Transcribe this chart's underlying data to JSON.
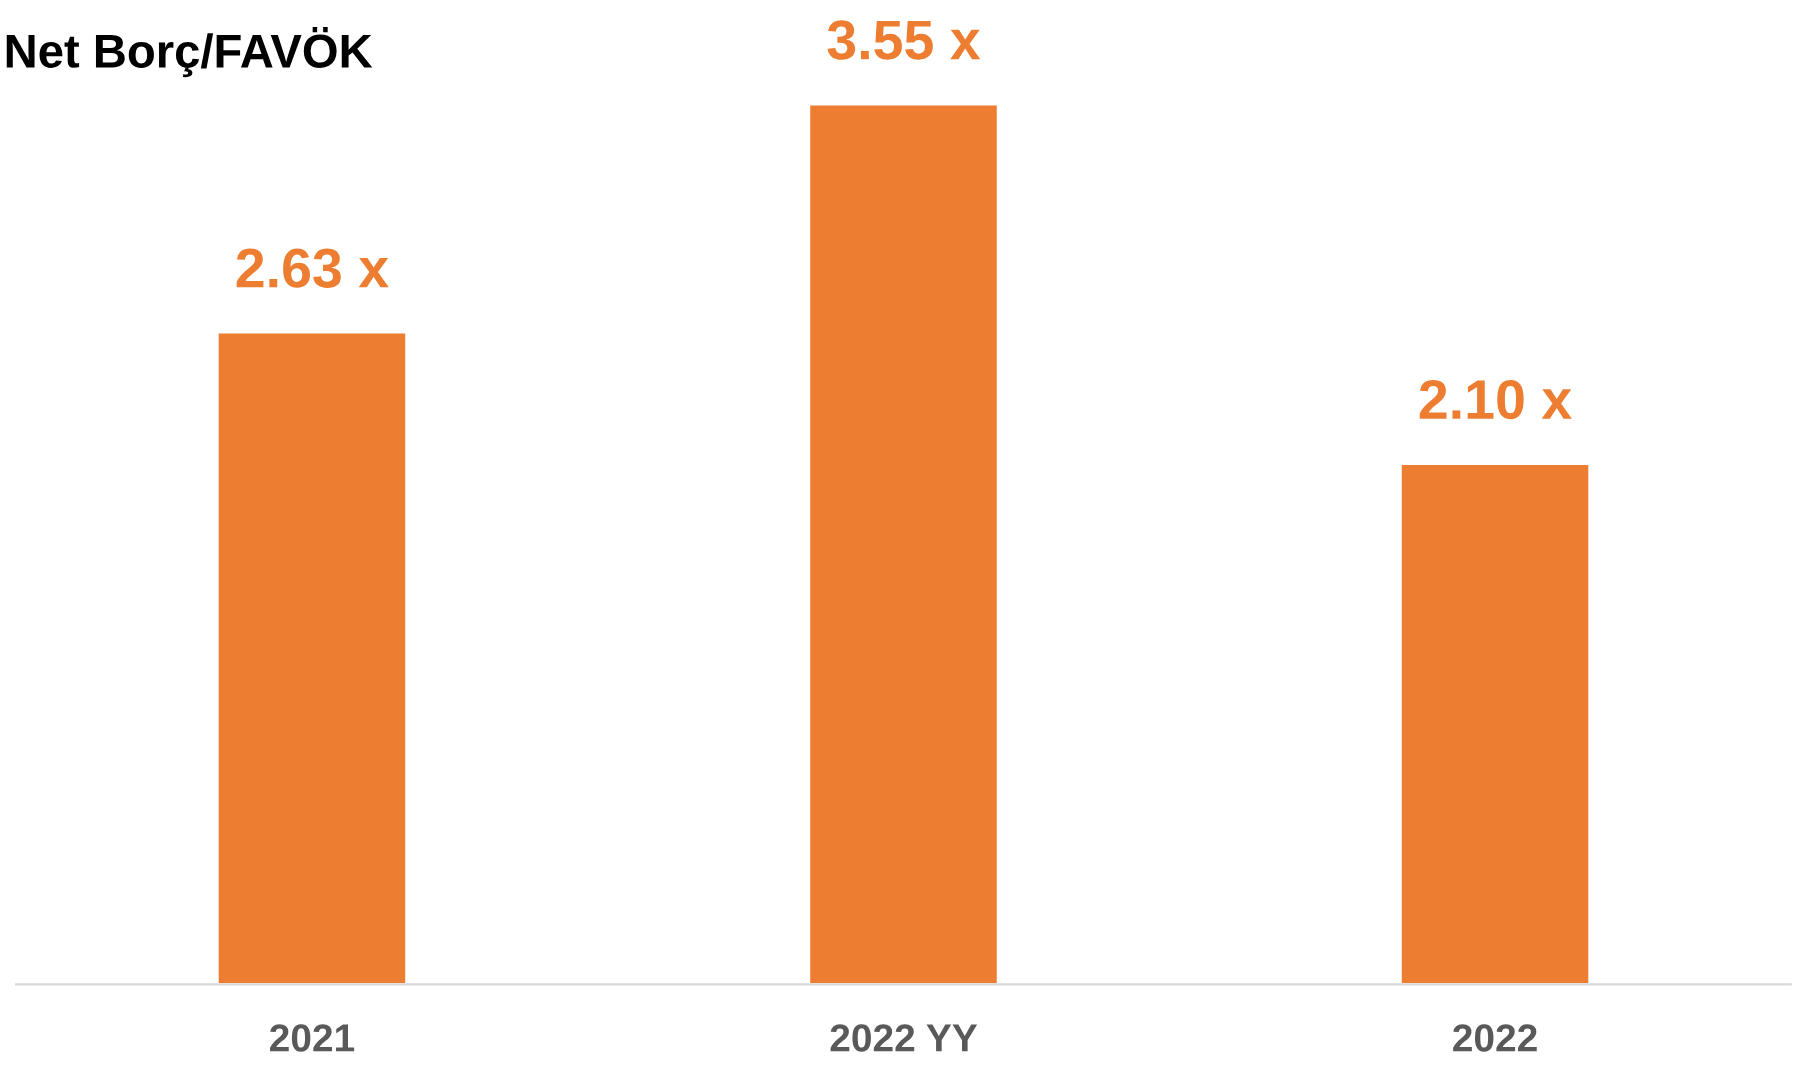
{
  "chart_data": {
    "type": "bar",
    "title": "Net Borç/FAVÖK",
    "categories": [
      "2021",
      "2022 YY",
      "2022"
    ],
    "values": [
      2.63,
      3.55,
      2.1
    ],
    "value_labels": [
      "2.63 x",
      "3.55 x",
      "2.10 x"
    ],
    "color": "#ed7d31",
    "grid": false,
    "legend": false
  }
}
